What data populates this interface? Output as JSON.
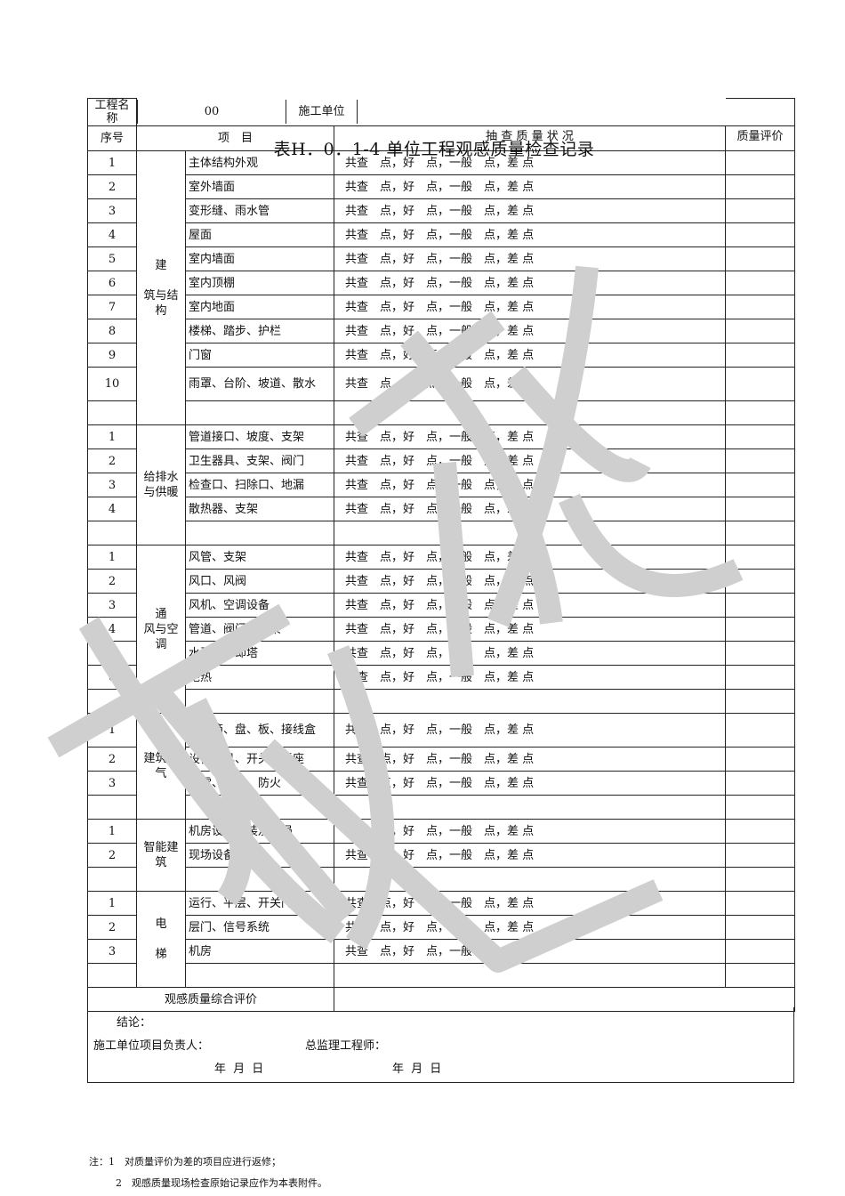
{
  "title": "表H．0．1-4 单位工程观感质量检查记录",
  "header": {
    "project_name_label": "工程名称",
    "project_name_value": "00",
    "contractor_label": "施工单位",
    "contractor_value": ""
  },
  "columns": {
    "no": "序号",
    "item": "项　目",
    "check": "抽 查 质 量 状 况",
    "eval": "质量评价"
  },
  "check_text": "共查　点，好　点，一般　点，差 点",
  "groups": [
    {
      "category": "建\n\n筑与结构",
      "items": [
        "主体结构外观",
        "室外墙面",
        "变形缝、雨水管",
        "屋面",
        "室内墙面",
        "室内顶棚",
        "室内地面",
        "楼梯、踏步、护栏",
        "门窗",
        "雨罩、台阶、坡道、散水"
      ]
    },
    {
      "category": "给排水与供暖",
      "items": [
        "管道接口、坡度、支架",
        "卫生器具、支架、阀门",
        "检查口、扫除口、地漏",
        "散热器、支架"
      ]
    },
    {
      "category": "通\n风与空调",
      "items": [
        "风管、支架",
        "风口、风阀",
        "风机、空调设备",
        "管道、阀门、支架",
        "水泵、冷却塔",
        "绝热"
      ]
    },
    {
      "category": "建筑电气",
      "items": [
        "配电箱、盘、板、接线盒",
        "设备器具、开关、插座",
        "防雷、接地、防火"
      ]
    },
    {
      "category": "智能建筑",
      "items": [
        "机房设备安装及布局",
        "现场设备安装"
      ]
    },
    {
      "category": "电\n\n梯",
      "items": [
        "运行、平层、开关门",
        "层门、信号系统",
        "机房"
      ]
    }
  ],
  "summary_label": "观感质量综合评价",
  "conclusion": {
    "label": "结论：",
    "contractor_lead": "施工单位项目负责人：",
    "chief_supervisor": "总监理工程师：",
    "date1": "年 月 日",
    "date2": "年 月 日"
  },
  "notes": [
    "注：1　对质量评价为差的项目应进行返修；",
    "2　观感质量现场检查原始记录应作为本表附件。"
  ],
  "watermark_color": "#cfcfcf"
}
